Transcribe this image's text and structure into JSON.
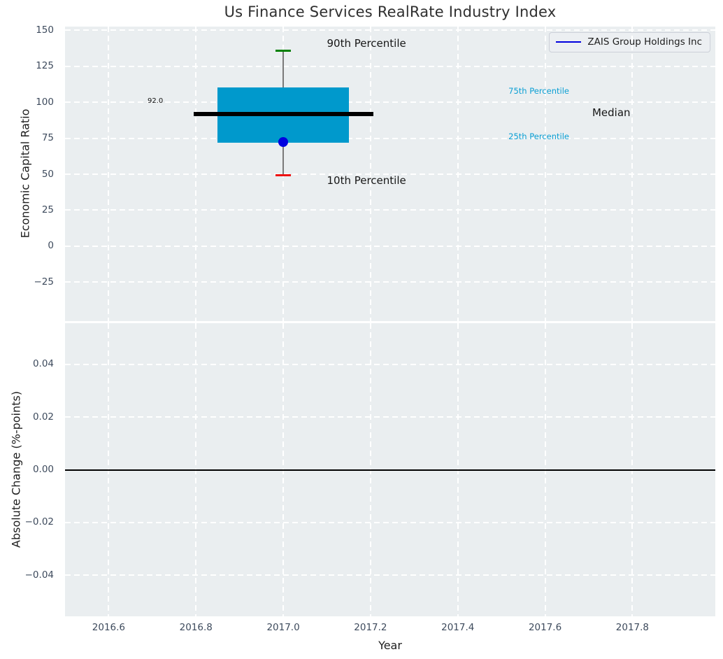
{
  "figure": {
    "title": "Us Finance Services RealRate Industry Index",
    "plot_bg": "#eaeef0",
    "grid_color": "#ffffff",
    "tick_color": "#3d4a5c",
    "title_color": "#2f2f2f"
  },
  "x_axis": {
    "label": "Year",
    "xlim": [
      2016.5,
      2017.99
    ],
    "ticks": [
      {
        "v": 2016.6,
        "label": "2016.6"
      },
      {
        "v": 2016.8,
        "label": "2016.8"
      },
      {
        "v": 2017.0,
        "label": "2017.0"
      },
      {
        "v": 2017.2,
        "label": "2017.2"
      },
      {
        "v": 2017.4,
        "label": "2017.4"
      },
      {
        "v": 2017.6,
        "label": "2017.6"
      },
      {
        "v": 2017.8,
        "label": "2017.8"
      }
    ]
  },
  "chart_data": [
    {
      "type": "box",
      "title": "Us Finance Services RealRate Industry Index",
      "ylabel": "Economic Capital Ratio",
      "ylim": [
        -52,
        152.5
      ],
      "yticks": [
        {
          "v": 150,
          "label": "150"
        },
        {
          "v": 125,
          "label": "125"
        },
        {
          "v": 100,
          "label": "100"
        },
        {
          "v": 75,
          "label": "75"
        },
        {
          "v": 50,
          "label": "50"
        },
        {
          "v": 25,
          "label": "25"
        },
        {
          "v": 0,
          "label": "0"
        },
        {
          "v": -25,
          "label": "−25"
        }
      ],
      "box": {
        "x": 2017.0,
        "p10": 49.5,
        "p25": 72,
        "median": 92,
        "p75": 110,
        "p90": 135.5,
        "company_value": 72.5,
        "box_half_width": 0.151,
        "median_half_width": 0.206,
        "cap_half_width": 0.017
      },
      "colors": {
        "box_fill": "#0099cc",
        "median": "#000000",
        "whisker": "#7a7a7a",
        "cap_top": "#008000",
        "cap_bottom": "#ee1111",
        "company_dot": "#0000e0"
      },
      "annotations": [
        {
          "text": "92.0",
          "x": 2016.689,
          "y": 100.5,
          "color": "#111111",
          "size": 10
        },
        {
          "text": "90th Percentile",
          "x": 2017.1,
          "y": 140.5,
          "color": "#161616",
          "size": 15
        },
        {
          "text": "75th Percentile",
          "x": 2017.516,
          "y": 107.5,
          "color": "#0a9fd4",
          "size": 11.5
        },
        {
          "text": "Median",
          "x": 2017.708,
          "y": 92.3,
          "color": "#161616",
          "size": 15
        },
        {
          "text": "25th Percentile",
          "x": 2017.516,
          "y": 76,
          "color": "#0a9fd4",
          "size": 11.5
        },
        {
          "text": "10th Percentile",
          "x": 2017.1,
          "y": 45.5,
          "color": "#161616",
          "size": 15
        }
      ],
      "legend": {
        "label": "ZAIS Group Holdings Inc",
        "line_color": "#0000dd",
        "position": "upper right"
      }
    },
    {
      "type": "line",
      "ylabel": "Absolute Change (%-points)",
      "ylim": [
        -0.0555,
        0.0555
      ],
      "yticks": [
        {
          "v": 0.04,
          "label": "0.04"
        },
        {
          "v": 0.02,
          "label": "0.02"
        },
        {
          "v": 0.0,
          "label": "0.00"
        },
        {
          "v": -0.02,
          "label": "−0.02"
        },
        {
          "v": -0.04,
          "label": "−0.04"
        }
      ],
      "zero_line": {
        "v": 0,
        "color": "#000000"
      },
      "series": []
    }
  ]
}
